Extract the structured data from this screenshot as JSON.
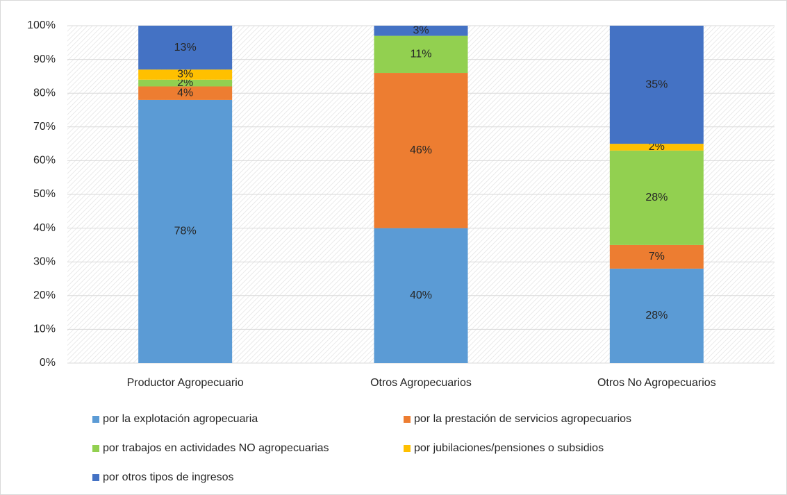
{
  "chart_data": {
    "type": "stacked_bar",
    "categories": [
      "Productor Agropecuario",
      "Otros Agropecuarios",
      "Otros No Agropecuarios"
    ],
    "series": [
      {
        "name": "por la explotación agropecuaria",
        "color": "#5b9bd5",
        "values": [
          78,
          40,
          28
        ],
        "value_labels": [
          "78%",
          "40%",
          "28%"
        ]
      },
      {
        "name": "por la prestación de servicios agropecuarios",
        "color": "#ed7d31",
        "values": [
          4,
          46,
          7
        ],
        "value_labels": [
          "4%",
          "46%",
          "7%"
        ]
      },
      {
        "name": "por trabajos en actividades NO agropecuarias",
        "color": "#92d050",
        "values": [
          2,
          11,
          28
        ],
        "value_labels": [
          "2%",
          "11%",
          "28%"
        ]
      },
      {
        "name": "por jubilaciones/pensiones o subsidios",
        "color": "#ffc000",
        "values": [
          3,
          0,
          2
        ],
        "value_labels": [
          "3%",
          null,
          "2%"
        ]
      },
      {
        "name": "por otros tipos de ingresos",
        "color": "#4472c4",
        "values": [
          13,
          3,
          35
        ],
        "value_labels": [
          "13%",
          "3%",
          "35%"
        ]
      }
    ],
    "ylim": [
      0,
      100
    ],
    "yticks": [
      {
        "value": 0,
        "label": "0%"
      },
      {
        "value": 10,
        "label": "10%"
      },
      {
        "value": 20,
        "label": "20%"
      },
      {
        "value": 30,
        "label": "30%"
      },
      {
        "value": 40,
        "label": "40%"
      },
      {
        "value": 50,
        "label": "50%"
      },
      {
        "value": 60,
        "label": "60%"
      },
      {
        "value": 70,
        "label": "70%"
      },
      {
        "value": 80,
        "label": "80%"
      },
      {
        "value": 90,
        "label": "90%"
      },
      {
        "value": 100,
        "label": "100%"
      }
    ],
    "grid": true,
    "legend": "bottom"
  }
}
